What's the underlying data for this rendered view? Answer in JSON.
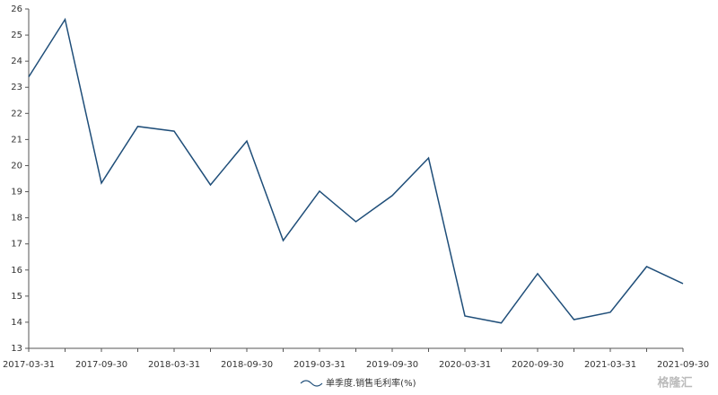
{
  "chart_data": {
    "type": "line",
    "categories": [
      "2017-03-31",
      null,
      "2017-09-30",
      null,
      "2018-03-31",
      null,
      "2018-09-30",
      null,
      "2019-03-31",
      null,
      "2019-09-30",
      null,
      "2020-03-31",
      null,
      "2020-09-30",
      null,
      "2021-03-31",
      null,
      "2021-09-30"
    ],
    "series": [
      {
        "name": "单季度.销售毛利率(%)",
        "color": "#1f4e79",
        "values": [
          23.4,
          25.6,
          19.33,
          21.5,
          21.32,
          19.26,
          20.94,
          17.13,
          19.02,
          17.85,
          18.85,
          20.29,
          14.24,
          13.97,
          15.86,
          14.1,
          14.38,
          16.13,
          15.48
        ]
      }
    ],
    "ylim": [
      13,
      26
    ],
    "yticks": [
      13,
      14,
      15,
      16,
      17,
      18,
      19,
      20,
      21,
      22,
      23,
      24,
      25,
      26
    ],
    "legend": "bottom",
    "watermark": "格隆汇"
  }
}
